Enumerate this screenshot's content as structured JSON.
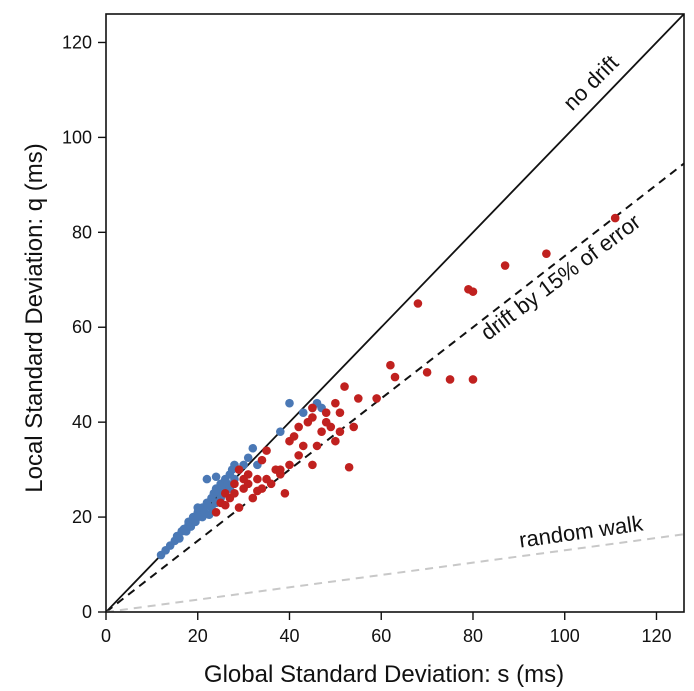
{
  "chart_data": {
    "type": "scatter",
    "xlabel": "Global Standard Deviation: s (ms)",
    "ylabel": "Local Standard Deviation: q (ms)",
    "xlim": [
      0,
      126
    ],
    "ylim": [
      0,
      126
    ],
    "xticks": [
      "0",
      "20",
      "40",
      "60",
      "80",
      "100",
      "120"
    ],
    "yticks": [
      "0",
      "20",
      "40",
      "60",
      "80",
      "100",
      "120"
    ],
    "grid": false,
    "reference_lines": [
      {
        "label": "no drift",
        "slope": 1.0,
        "style": "solid",
        "color": "#111111"
      },
      {
        "label": "drift by 15% of error",
        "slope": 0.75,
        "style": "dashed",
        "color": "#111111"
      },
      {
        "label": "random walk",
        "slope": 0.13,
        "style": "dashed",
        "color": "#c8c8c8"
      }
    ],
    "series": [
      {
        "color": "#4a78b5",
        "points": [
          [
            12,
            12
          ],
          [
            13,
            13
          ],
          [
            14,
            14
          ],
          [
            15,
            15
          ],
          [
            15.5,
            16
          ],
          [
            16,
            15.5
          ],
          [
            16.5,
            17
          ],
          [
            17,
            17.5
          ],
          [
            17.5,
            17
          ],
          [
            18,
            18.5
          ],
          [
            18,
            19
          ],
          [
            18.5,
            18
          ],
          [
            19,
            19.5
          ],
          [
            19,
            20
          ],
          [
            19.5,
            19
          ],
          [
            20,
            21
          ],
          [
            20,
            20
          ],
          [
            20.5,
            21.5
          ],
          [
            21,
            20
          ],
          [
            21,
            22
          ],
          [
            21.5,
            21
          ],
          [
            22,
            22.5
          ],
          [
            22,
            23
          ],
          [
            22.5,
            20.5
          ],
          [
            23,
            24
          ],
          [
            23,
            22
          ],
          [
            23.5,
            25
          ],
          [
            24,
            26
          ],
          [
            24,
            23
          ],
          [
            24.5,
            25.5
          ],
          [
            25,
            27
          ],
          [
            25,
            24
          ],
          [
            25.5,
            26
          ],
          [
            26,
            28
          ],
          [
            26,
            25
          ],
          [
            26.5,
            27
          ],
          [
            27,
            29
          ],
          [
            27,
            26
          ],
          [
            27.5,
            30
          ],
          [
            28,
            31
          ],
          [
            28,
            28
          ],
          [
            29,
            30
          ],
          [
            30,
            31
          ],
          [
            31,
            32.5
          ],
          [
            32,
            34.5
          ],
          [
            33,
            31
          ],
          [
            38,
            38
          ],
          [
            40,
            44
          ],
          [
            45,
            43
          ],
          [
            46,
            44
          ],
          [
            47,
            43
          ],
          [
            43,
            42
          ],
          [
            22,
            28
          ],
          [
            24,
            28.5
          ],
          [
            20,
            22
          ]
        ]
      },
      {
        "color": "#c0211f",
        "points": [
          [
            24,
            21
          ],
          [
            25,
            23
          ],
          [
            26,
            25
          ],
          [
            27,
            24
          ],
          [
            28,
            25
          ],
          [
            29,
            22
          ],
          [
            30,
            26
          ],
          [
            31,
            27
          ],
          [
            32,
            24
          ],
          [
            33,
            28
          ],
          [
            34,
            26
          ],
          [
            35,
            34
          ],
          [
            37,
            30
          ],
          [
            38,
            29
          ],
          [
            39,
            25
          ],
          [
            40,
            31
          ],
          [
            40,
            36
          ],
          [
            41,
            37
          ],
          [
            42,
            39
          ],
          [
            42,
            33
          ],
          [
            43,
            35
          ],
          [
            44,
            40
          ],
          [
            45,
            41
          ],
          [
            45,
            43
          ],
          [
            46,
            35
          ],
          [
            47,
            38
          ],
          [
            48,
            42
          ],
          [
            49,
            39
          ],
          [
            50,
            36
          ],
          [
            51,
            38
          ],
          [
            51,
            42
          ],
          [
            52,
            47.5
          ],
          [
            53,
            30.5
          ],
          [
            54,
            39
          ],
          [
            55,
            45
          ],
          [
            59,
            45
          ],
          [
            62,
            52
          ],
          [
            63,
            49.5
          ],
          [
            68,
            65
          ],
          [
            70,
            50.5
          ],
          [
            75,
            49
          ],
          [
            79,
            68
          ],
          [
            80,
            67.5
          ],
          [
            80,
            49
          ],
          [
            87,
            73
          ],
          [
            96,
            75.5
          ],
          [
            111,
            83
          ],
          [
            36,
            27
          ],
          [
            38,
            30
          ],
          [
            45,
            31
          ],
          [
            48,
            40
          ],
          [
            50,
            44
          ],
          [
            34,
            32
          ],
          [
            30,
            28
          ],
          [
            28,
            27
          ],
          [
            26,
            22.5
          ],
          [
            29,
            30
          ],
          [
            31,
            29
          ],
          [
            33,
            25.5
          ],
          [
            35,
            28
          ]
        ]
      }
    ]
  }
}
